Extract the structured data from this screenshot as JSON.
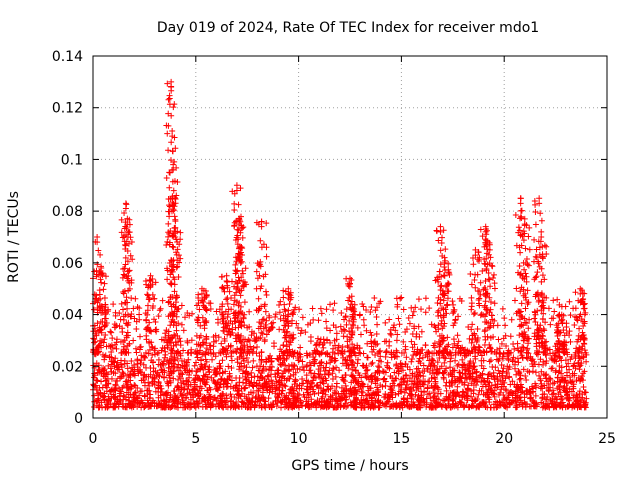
{
  "chart_data": {
    "type": "scatter",
    "title": "Day 019 of 2024, Rate Of TEC Index for receiver mdo1",
    "xlabel": "GPS time / hours",
    "ylabel": "ROTI / TECUs",
    "xlim": [
      0,
      25
    ],
    "ylim": [
      0,
      0.14
    ],
    "xticks": [
      "0",
      "5",
      "10",
      "15",
      "20",
      "25"
    ],
    "yticks": [
      "0",
      "0.02",
      "0.04",
      "0.06",
      "0.08",
      "0.1",
      "0.12",
      "0.14"
    ],
    "grid": true,
    "marker": "+",
    "color": "#ff0000",
    "data_x_range": [
      0,
      24
    ],
    "baseline_band": [
      0.004,
      0.025
    ],
    "peaks": [
      {
        "x": 0.2,
        "y": 0.07
      },
      {
        "x": 0.4,
        "y": 0.058
      },
      {
        "x": 1.6,
        "y": 0.083
      },
      {
        "x": 1.7,
        "y": 0.072
      },
      {
        "x": 2.8,
        "y": 0.055
      },
      {
        "x": 3.8,
        "y": 0.13
      },
      {
        "x": 3.85,
        "y": 0.111
      },
      {
        "x": 3.9,
        "y": 0.098
      },
      {
        "x": 4.0,
        "y": 0.072
      },
      {
        "x": 5.3,
        "y": 0.05
      },
      {
        "x": 6.5,
        "y": 0.055
      },
      {
        "x": 7.0,
        "y": 0.09
      },
      {
        "x": 7.1,
        "y": 0.077
      },
      {
        "x": 7.2,
        "y": 0.066
      },
      {
        "x": 8.2,
        "y": 0.076
      },
      {
        "x": 9.5,
        "y": 0.05
      },
      {
        "x": 12.5,
        "y": 0.054
      },
      {
        "x": 16.9,
        "y": 0.074
      },
      {
        "x": 17.1,
        "y": 0.062
      },
      {
        "x": 18.6,
        "y": 0.065
      },
      {
        "x": 19.1,
        "y": 0.074
      },
      {
        "x": 19.3,
        "y": 0.067
      },
      {
        "x": 20.8,
        "y": 0.085
      },
      {
        "x": 21.0,
        "y": 0.077
      },
      {
        "x": 21.7,
        "y": 0.085
      },
      {
        "x": 21.8,
        "y": 0.072
      },
      {
        "x": 22.8,
        "y": 0.04
      },
      {
        "x": 23.7,
        "y": 0.05
      }
    ]
  }
}
